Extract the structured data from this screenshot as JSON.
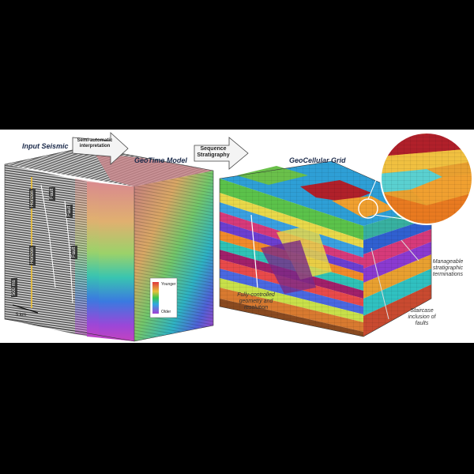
{
  "titles": {
    "input_seismic": "Input Seismic",
    "geotime_model": "GeoTime Model",
    "geocellular_grid": "GeoCellular Grid"
  },
  "arrows": {
    "semi_automatic": "Semi-automatic interpretation",
    "sequence_stratigraphy": "Sequence Stratigraphy"
  },
  "annotations": {
    "fully_controlled": "Fully-controlled geometry and resolution",
    "manageable": "Manageable stratigraphic terminations",
    "staircase": "Staircase inclusion of faults"
  },
  "scale": {
    "label": "5 km"
  },
  "legend": {
    "top": "Younger",
    "bottom": "Older"
  },
  "seismic_labels": {
    "horizon_a": "Horizon",
    "horizon_b": "Horizon",
    "fault_a": "Fault",
    "fault_b": "Fault",
    "fault_c": "Fault",
    "vertical_scale": "500 ms"
  },
  "colors": {
    "background_page": "#000000",
    "background_stage": "#ffffff",
    "title_color": "#1b2a4a"
  }
}
